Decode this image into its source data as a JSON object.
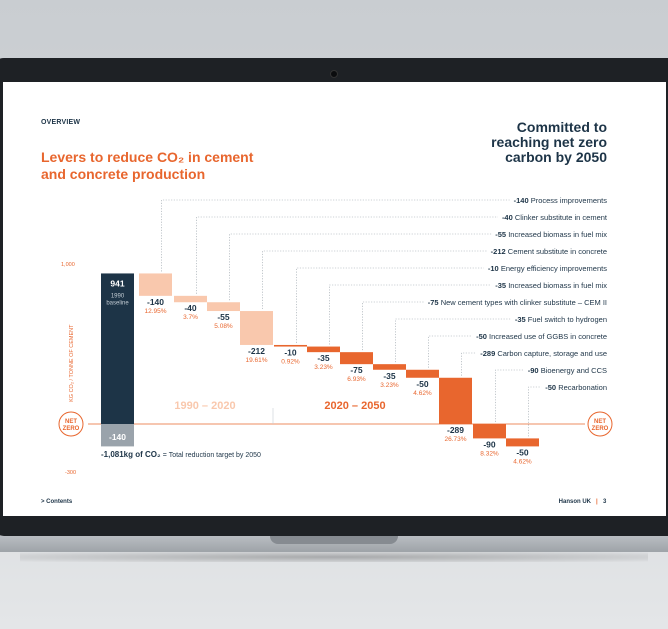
{
  "header": {
    "section": "OVERVIEW",
    "title_lines": [
      "Levers to reduce CO₂ in cement",
      "and concrete production"
    ],
    "commit_lines": [
      "Committed to",
      "reaching net zero",
      "carbon by 2050"
    ]
  },
  "colors": {
    "navy": "#1d3447",
    "orange": "#e8662e",
    "peach": "#f9c8ad",
    "grey": "#9aa3ab"
  },
  "chart_data": {
    "type": "bar",
    "subtype": "waterfall",
    "ylabel": "KG CO₂ / TONNE OF CEMENT",
    "y_ticks": [
      1000,
      -300
    ],
    "y_tick_labels": [
      "1,000",
      "-300"
    ],
    "ylim": [
      -300,
      1000
    ],
    "zero_label_lines": [
      "NET",
      "ZERO"
    ],
    "start": {
      "value": 941,
      "label": "941",
      "sub_lines": [
        "1990",
        "baseline"
      ]
    },
    "end": {
      "value": -140,
      "label": "-140"
    },
    "levers": [
      {
        "name": "Process improvements",
        "value": -140,
        "label": "-140",
        "pct": "12.95%",
        "period": "1990-2020"
      },
      {
        "name": "Clinker substitute in cement",
        "value": -40,
        "label": "-40",
        "pct": "3.7%",
        "period": "1990-2020"
      },
      {
        "name": "Increased biomass in fuel mix",
        "value": -55,
        "label": "-55",
        "pct": "5.08%",
        "period": "1990-2020"
      },
      {
        "name": "Cement substitute in concrete",
        "value": -212,
        "label": "-212",
        "pct": "19.61%",
        "period": "1990-2020"
      },
      {
        "name": "Energy efficiency improvements",
        "value": -10,
        "label": "-10",
        "pct": "0.92%",
        "period": "2020-2050"
      },
      {
        "name": "Increased biomass in fuel mix",
        "value": -35,
        "label": "-35",
        "pct": "3.23%",
        "period": "2020-2050"
      },
      {
        "name": "New cement types with clinker substitute – CEM II",
        "value": -75,
        "label": "-75",
        "pct": "6.93%",
        "period": "2020-2050"
      },
      {
        "name": "Fuel switch to hydrogen",
        "value": -35,
        "label": "-35",
        "pct": "3.23%",
        "period": "2020-2050"
      },
      {
        "name": "Increased use of GGBS in concrete",
        "value": -50,
        "label": "-50",
        "pct": "4.62%",
        "period": "2020-2050"
      },
      {
        "name": "Carbon capture, storage and use",
        "value": -289,
        "label": "-289",
        "pct": "26.73%",
        "period": "2020-2050"
      },
      {
        "name": "Bioenergy and CCS",
        "value": -90,
        "label": "-90",
        "pct": "8.32%",
        "period": "2020-2050"
      },
      {
        "name": "Recarbonation",
        "value": -50,
        "label": "-50",
        "pct": "4.62%",
        "period": "2020-2050"
      }
    ],
    "periods": [
      {
        "label": "1990 – 2020"
      },
      {
        "label": "2020 – 2050"
      }
    ],
    "total": {
      "value_text": "-1,081kg of CO₂",
      "desc": "= Total reduction target by 2050"
    }
  },
  "footer": {
    "contents": "> Contents",
    "brand": "Hanson UK",
    "page": "3"
  }
}
